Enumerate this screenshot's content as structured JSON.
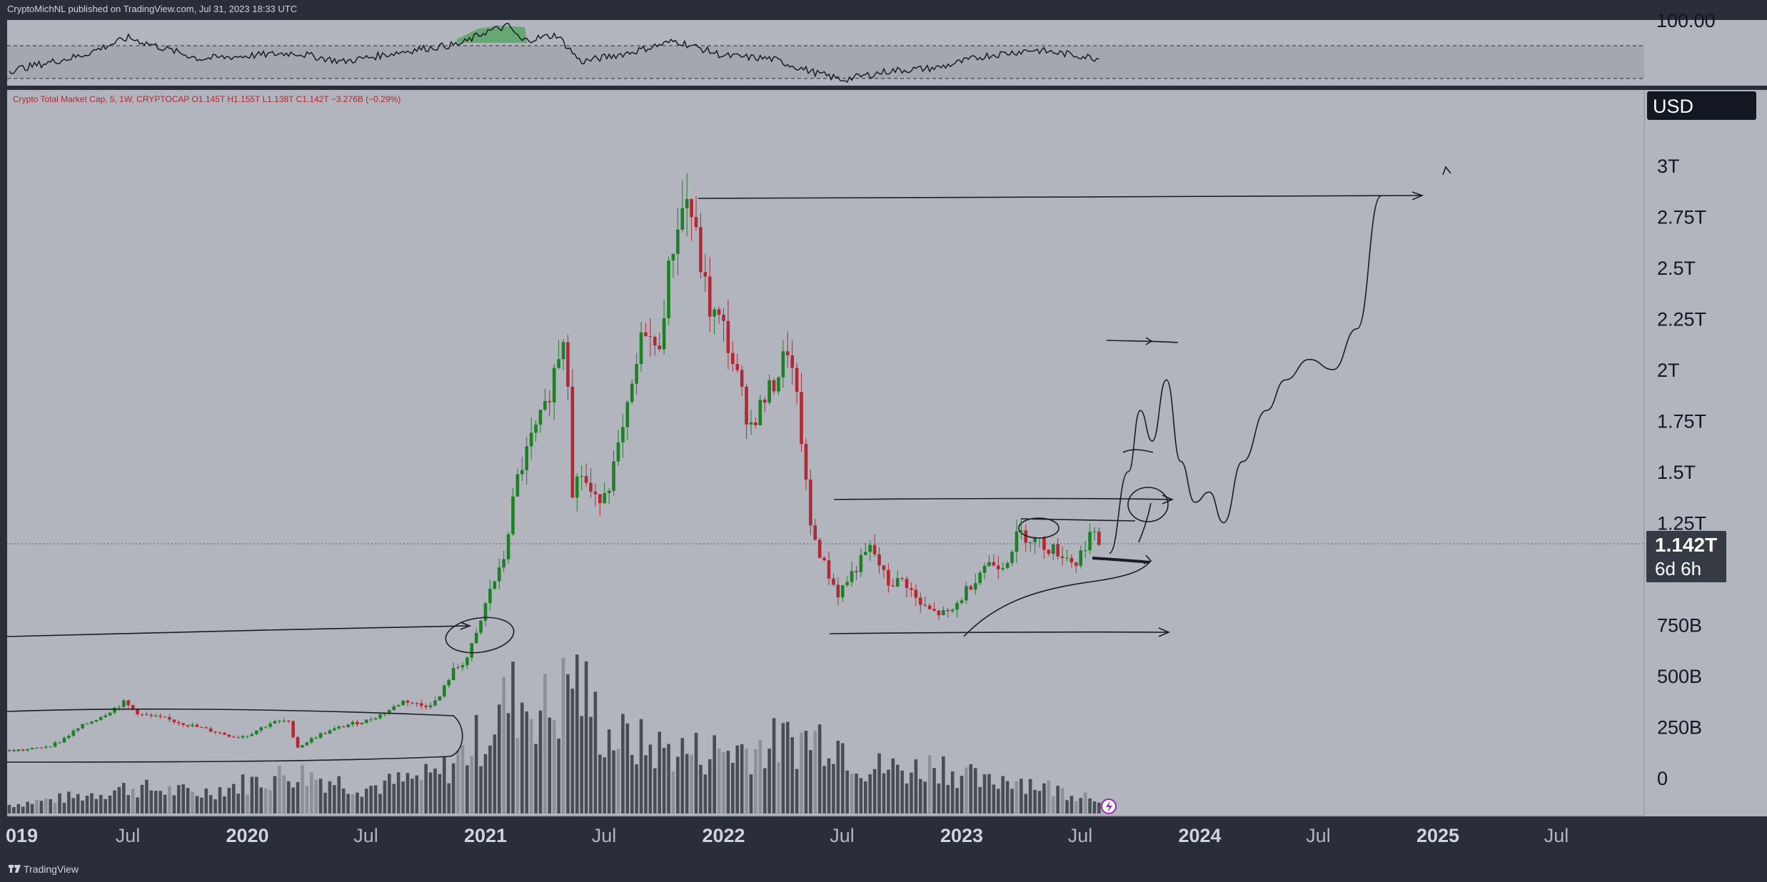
{
  "header": {
    "publisher_line": "CryptoMichNL published on TradingView.com, Jul 31, 2023 18:33 UTC"
  },
  "footer": {
    "brand": "TradingView",
    "logo_icon": "tradingview-logo-icon"
  },
  "colors": {
    "background_frame": "#2a2e39",
    "chart_background": "#b2b5be",
    "up_candle": "#1e7f26",
    "down_candle": "#b22833",
    "volume": "#4a4c53",
    "volume_light": "#8e9097",
    "rsi_line": "#1b1d25",
    "rsi_fill": "#4ca35a",
    "price_tag": "#363a45",
    "currency_box": "#131722"
  },
  "rsi_pane": {
    "level_label": "100.00"
  },
  "price_pane": {
    "legend": "Crypto Total Market Cap, 5, 1W, CRYPTOCAP  O1.145T  H1.155T  L1.138T  C1.142T  −3.276B (−0.29%)",
    "currency_label": "USD",
    "last_price_label": "1.142T",
    "countdown_label": "6d 6h",
    "alert_icon": "lightning-bolt-icon"
  },
  "chart_data": {
    "type": "candlestick",
    "title": "Crypto Total Market Cap",
    "symbol": "CRYPTOCAP",
    "interval": "1W",
    "currency": "USD",
    "ohlc_last": {
      "open": "1.145T",
      "high": "1.155T",
      "low": "1.138T",
      "close": "1.142T",
      "change": "−3.276B (−0.29%)"
    },
    "y_axis": {
      "ticks": [
        {
          "label": "0",
          "value": 0
        },
        {
          "label": "250B",
          "value": 0.25
        },
        {
          "label": "500B",
          "value": 0.5
        },
        {
          "label": "750B",
          "value": 0.75
        },
        {
          "label": "1.25T",
          "value": 1.25
        },
        {
          "label": "1.5T",
          "value": 1.5
        },
        {
          "label": "1.75T",
          "value": 1.75
        },
        {
          "label": "2T",
          "value": 2.0
        },
        {
          "label": "2.25T",
          "value": 2.25
        },
        {
          "label": "2.5T",
          "value": 2.5
        },
        {
          "label": "2.75T",
          "value": 2.75
        },
        {
          "label": "3T",
          "value": 3.0
        }
      ],
      "unit": "trillion USD"
    },
    "x_axis": {
      "ticks": [
        {
          "label": "019",
          "year": 2019.0,
          "bold": true
        },
        {
          "label": "Jul",
          "year": 2019.5,
          "bold": false
        },
        {
          "label": "2020",
          "year": 2020.0,
          "bold": true
        },
        {
          "label": "Jul",
          "year": 2020.5,
          "bold": false
        },
        {
          "label": "2021",
          "year": 2021.0,
          "bold": true
        },
        {
          "label": "Jul",
          "year": 2021.5,
          "bold": false
        },
        {
          "label": "2022",
          "year": 2022.0,
          "bold": true
        },
        {
          "label": "Jul",
          "year": 2022.5,
          "bold": false
        },
        {
          "label": "2023",
          "year": 2023.0,
          "bold": true
        },
        {
          "label": "Jul",
          "year": 2023.5,
          "bold": false
        },
        {
          "label": "2024",
          "year": 2024.0,
          "bold": true
        },
        {
          "label": "Jul",
          "year": 2024.5,
          "bold": false
        },
        {
          "label": "2025",
          "year": 2025.0,
          "bold": true
        },
        {
          "label": "Jul",
          "year": 2025.5,
          "bold": false
        }
      ]
    },
    "price_path": [
      [
        2018.96,
        0.13
      ],
      [
        2019.1,
        0.14
      ],
      [
        2019.2,
        0.17
      ],
      [
        2019.3,
        0.25
      ],
      [
        2019.4,
        0.31
      ],
      [
        2019.48,
        0.37
      ],
      [
        2019.55,
        0.31
      ],
      [
        2019.65,
        0.29
      ],
      [
        2019.75,
        0.26
      ],
      [
        2019.85,
        0.23
      ],
      [
        2019.95,
        0.2
      ],
      [
        2020.0,
        0.21
      ],
      [
        2020.1,
        0.27
      ],
      [
        2020.17,
        0.28
      ],
      [
        2020.21,
        0.15
      ],
      [
        2020.3,
        0.21
      ],
      [
        2020.42,
        0.26
      ],
      [
        2020.5,
        0.28
      ],
      [
        2020.58,
        0.32
      ],
      [
        2020.66,
        0.38
      ],
      [
        2020.74,
        0.35
      ],
      [
        2020.8,
        0.38
      ],
      [
        2020.86,
        0.52
      ],
      [
        2020.92,
        0.58
      ],
      [
        2020.97,
        0.72
      ],
      [
        2021.02,
        0.93
      ],
      [
        2021.07,
        1.03
      ],
      [
        2021.13,
        1.45
      ],
      [
        2021.19,
        1.65
      ],
      [
        2021.25,
        1.8
      ],
      [
        2021.3,
        2.05
      ],
      [
        2021.34,
        2.23
      ],
      [
        2021.36,
        1.4
      ],
      [
        2021.4,
        1.5
      ],
      [
        2021.46,
        1.35
      ],
      [
        2021.52,
        1.45
      ],
      [
        2021.58,
        1.7
      ],
      [
        2021.62,
        1.93
      ],
      [
        2021.67,
        2.23
      ],
      [
        2021.72,
        2.05
      ],
      [
        2021.76,
        2.4
      ],
      [
        2021.8,
        2.7
      ],
      [
        2021.85,
        2.85
      ],
      [
        2021.89,
        2.6
      ],
      [
        2021.94,
        2.3
      ],
      [
        2022.0,
        2.2
      ],
      [
        2022.06,
        1.95
      ],
      [
        2022.11,
        1.72
      ],
      [
        2022.17,
        1.85
      ],
      [
        2022.22,
        1.95
      ],
      [
        2022.27,
        2.11
      ],
      [
        2022.32,
        1.75
      ],
      [
        2022.36,
        1.25
      ],
      [
        2022.42,
        1.05
      ],
      [
        2022.48,
        0.9
      ],
      [
        2022.55,
        1.02
      ],
      [
        2022.62,
        1.13
      ],
      [
        2022.69,
        0.95
      ],
      [
        2022.76,
        0.97
      ],
      [
        2022.82,
        0.85
      ],
      [
        2022.88,
        0.81
      ],
      [
        2022.95,
        0.8
      ],
      [
        2023.02,
        0.92
      ],
      [
        2023.1,
        1.05
      ],
      [
        2023.18,
        1.05
      ],
      [
        2023.24,
        1.2
      ],
      [
        2023.3,
        1.17
      ],
      [
        2023.36,
        1.13
      ],
      [
        2023.42,
        1.1
      ],
      [
        2023.48,
        1.05
      ],
      [
        2023.54,
        1.2
      ],
      [
        2023.58,
        1.142
      ]
    ],
    "volume_path": [
      [
        2019.0,
        0.06
      ],
      [
        2019.3,
        0.12
      ],
      [
        2019.5,
        0.18
      ],
      [
        2019.8,
        0.14
      ],
      [
        2020.2,
        0.28
      ],
      [
        2020.5,
        0.18
      ],
      [
        2020.8,
        0.26
      ],
      [
        2021.0,
        0.55
      ],
      [
        2021.1,
        0.8
      ],
      [
        2021.3,
        0.7
      ],
      [
        2021.36,
        1.0
      ],
      [
        2021.5,
        0.55
      ],
      [
        2021.7,
        0.45
      ],
      [
        2021.9,
        0.42
      ],
      [
        2022.1,
        0.45
      ],
      [
        2022.3,
        0.5
      ],
      [
        2022.45,
        0.55
      ],
      [
        2022.6,
        0.32
      ],
      [
        2022.8,
        0.3
      ],
      [
        2022.9,
        0.35
      ],
      [
        2023.1,
        0.2
      ],
      [
        2023.2,
        0.26
      ],
      [
        2023.4,
        0.16
      ],
      [
        2023.58,
        0.12
      ]
    ],
    "rsi_path": [
      [
        2019.0,
        0.2
      ],
      [
        2019.3,
        0.45
      ],
      [
        2019.5,
        0.75
      ],
      [
        2019.8,
        0.4
      ],
      [
        2020.2,
        0.5
      ],
      [
        2020.4,
        0.35
      ],
      [
        2020.7,
        0.55
      ],
      [
        2020.9,
        0.65
      ],
      [
        2021.0,
        0.85
      ],
      [
        2021.1,
        0.95
      ],
      [
        2021.15,
        0.7
      ],
      [
        2021.3,
        0.8
      ],
      [
        2021.4,
        0.35
      ],
      [
        2021.6,
        0.5
      ],
      [
        2021.8,
        0.7
      ],
      [
        2022.0,
        0.45
      ],
      [
        2022.2,
        0.4
      ],
      [
        2022.4,
        0.15
      ],
      [
        2022.5,
        0.05
      ],
      [
        2022.7,
        0.2
      ],
      [
        2022.9,
        0.25
      ],
      [
        2023.1,
        0.45
      ],
      [
        2023.3,
        0.55
      ],
      [
        2023.5,
        0.45
      ],
      [
        2023.58,
        0.4
      ]
    ],
    "drawn_projection": [
      [
        2023.62,
        1.1
      ],
      [
        2023.7,
        1.5
      ],
      [
        2023.75,
        1.8
      ],
      [
        2023.8,
        1.65
      ],
      [
        2023.86,
        1.95
      ],
      [
        2023.92,
        1.55
      ],
      [
        2023.98,
        1.35
      ],
      [
        2024.04,
        1.4
      ],
      [
        2024.1,
        1.25
      ],
      [
        2024.18,
        1.55
      ],
      [
        2024.28,
        1.8
      ],
      [
        2024.36,
        1.95
      ],
      [
        2024.46,
        2.05
      ],
      [
        2024.56,
        2.0
      ],
      [
        2024.66,
        2.2
      ],
      [
        2024.76,
        2.85
      ]
    ]
  }
}
